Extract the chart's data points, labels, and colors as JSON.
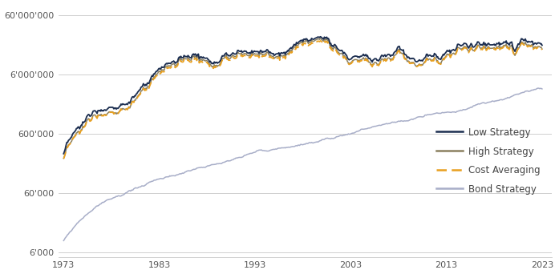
{
  "title": "",
  "x_start": 1973,
  "x_end": 2023,
  "y_ticks": [
    6000,
    60000,
    600000,
    6000000,
    60000000
  ],
  "y_tick_labels": [
    "6'000",
    "60'000",
    "600'000",
    "6'000'000",
    "60'000'000"
  ],
  "x_ticks": [
    1973,
    1983,
    1993,
    2003,
    2013,
    2023
  ],
  "ylim_log": [
    5000,
    90000000
  ],
  "background_color": "#ffffff",
  "grid_color": "#c8c8c8",
  "low_strategy_color": "#1c2e50",
  "high_strategy_color": "#8b8060",
  "cost_averaging_color": "#e8a020",
  "bond_strategy_color": "#a8aec8",
  "legend_labels": [
    "Low Strategy",
    "High Strategy",
    "Cost Averaging",
    "Bond Strategy"
  ],
  "legend_fontsize": 8.5
}
